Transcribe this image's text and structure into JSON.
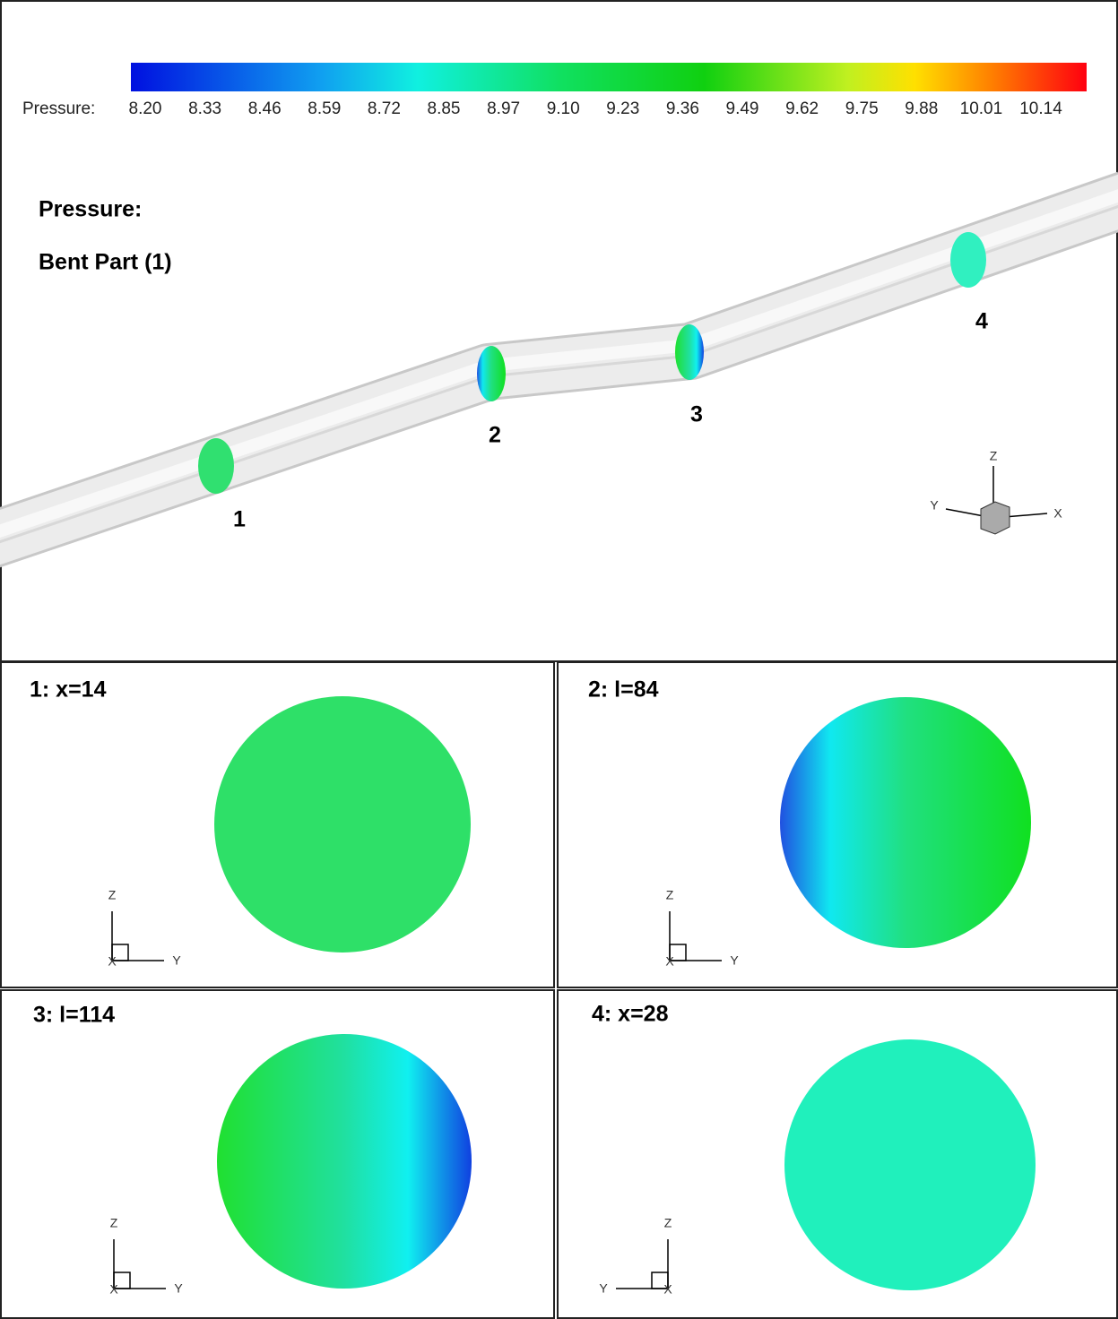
{
  "colorbar": {
    "label": "Pressure:",
    "ticks": [
      "8.20",
      "8.33",
      "8.46",
      "8.59",
      "8.72",
      "8.85",
      "8.97",
      "9.10",
      "9.23",
      "9.36",
      "9.49",
      "9.62",
      "9.75",
      "9.88",
      "10.01",
      "10.14"
    ]
  },
  "view": {
    "title": "Pressure:",
    "subtitle": "Bent Part (1)",
    "section_labels": [
      "1",
      "2",
      "3",
      "4"
    ]
  },
  "axes": {
    "x": "X",
    "y": "Y",
    "z": "Z"
  },
  "panels": [
    {
      "title": "1: x=14"
    },
    {
      "title": "2: l=84"
    },
    {
      "title": "3: l=114"
    },
    {
      "title": "4: x=28"
    }
  ]
}
